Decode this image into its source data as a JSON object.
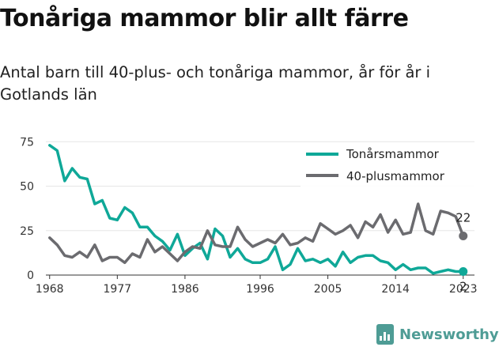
{
  "title": "Tonåriga mammor blir allt färre",
  "subtitle": "Antal barn till 40-plus- och tonåriga mammor, år för år i Gotlands län",
  "brand": "Newsworthy",
  "colors": {
    "teen": "#0fa898",
    "forty": "#6b6b6f",
    "text": "#222222",
    "grid": "#e6e6e6"
  },
  "chart_data": {
    "type": "line",
    "x": [
      1968,
      1969,
      1970,
      1971,
      1972,
      1973,
      1974,
      1975,
      1976,
      1977,
      1978,
      1979,
      1980,
      1981,
      1982,
      1983,
      1984,
      1985,
      1986,
      1987,
      1988,
      1989,
      1990,
      1991,
      1992,
      1993,
      1994,
      1995,
      1996,
      1997,
      1998,
      1999,
      2000,
      2001,
      2002,
      2003,
      2004,
      2005,
      2006,
      2007,
      2008,
      2009,
      2010,
      2011,
      2012,
      2013,
      2014,
      2015,
      2016,
      2017,
      2018,
      2019,
      2020,
      2021,
      2022,
      2023
    ],
    "series": [
      {
        "name": "Tonårsmammor",
        "color": "#0fa898",
        "values": [
          73,
          70,
          53,
          60,
          55,
          54,
          40,
          42,
          32,
          31,
          38,
          35,
          27,
          27,
          22,
          19,
          14,
          23,
          11,
          15,
          18,
          9,
          26,
          22,
          10,
          15,
          9,
          7,
          7,
          9,
          16,
          3,
          6,
          15,
          8,
          9,
          7,
          9,
          5,
          13,
          7,
          10,
          11,
          11,
          8,
          7,
          3,
          6,
          3,
          4,
          4,
          1,
          2,
          3,
          2,
          2
        ],
        "end_label": "2"
      },
      {
        "name": "40-plusmammor",
        "color": "#6b6b6f",
        "values": [
          21,
          17,
          11,
          10,
          13,
          10,
          17,
          8,
          10,
          10,
          7,
          12,
          10,
          20,
          13,
          16,
          12,
          8,
          13,
          16,
          15,
          25,
          17,
          16,
          16,
          27,
          20,
          16,
          18,
          20,
          18,
          23,
          17,
          18,
          21,
          19,
          29,
          26,
          23,
          25,
          28,
          21,
          30,
          27,
          34,
          24,
          31,
          23,
          24,
          40,
          25,
          23,
          36,
          35,
          33,
          22
        ],
        "end_label": "22"
      }
    ],
    "xticks": [
      1968,
      1977,
      1986,
      1996,
      2005,
      2014,
      2023
    ],
    "yticks": [
      0,
      25,
      50,
      75
    ],
    "xlim": [
      1967.5,
      2024.5
    ],
    "ylim": [
      0,
      80
    ],
    "legend_position": "top-right",
    "grid": true
  }
}
